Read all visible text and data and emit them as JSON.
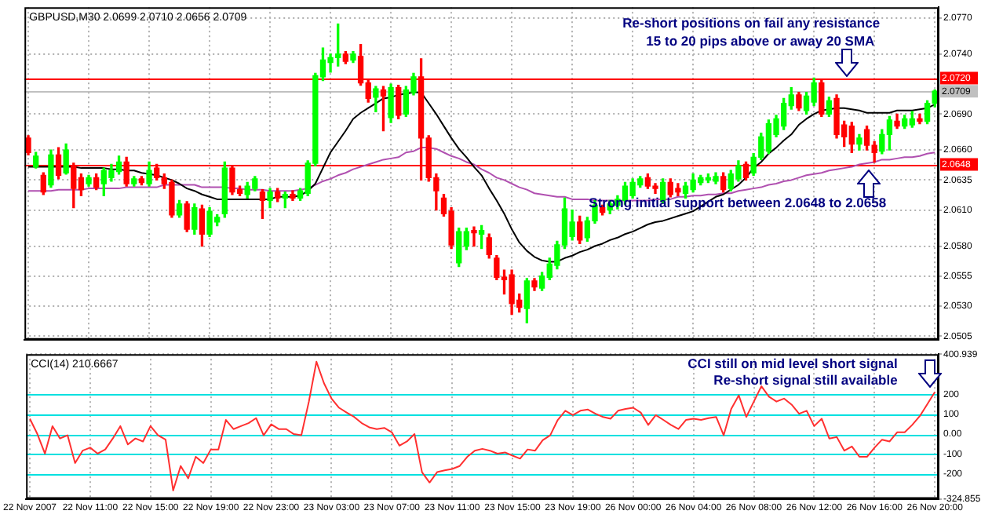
{
  "chart_data": [
    {
      "type": "candlestick",
      "title": "GBPUSD,M30 2.0699 2.0710 2.0656 2.0709",
      "categories": [
        null,
        null,
        null,
        null,
        null,
        null,
        null,
        null,
        null,
        null,
        null,
        null,
        null,
        null,
        null,
        null,
        null,
        null,
        null,
        null,
        null,
        null,
        null,
        null,
        null,
        null,
        null,
        null,
        null,
        null,
        null,
        null,
        null,
        null,
        null,
        null,
        null,
        null,
        null,
        null,
        null,
        null,
        null,
        null,
        null,
        null,
        null,
        null,
        null,
        null,
        null,
        null,
        null,
        null,
        null,
        null,
        null,
        null,
        null,
        null,
        null,
        null,
        null,
        null,
        null,
        null,
        null,
        null,
        null,
        null,
        null,
        null,
        null,
        null,
        null,
        null,
        null,
        null,
        null,
        null,
        null,
        null,
        null,
        null,
        null,
        null,
        null,
        null,
        null,
        null,
        null,
        null,
        null,
        null,
        null,
        null,
        null,
        null,
        null,
        null,
        null,
        null,
        null,
        null,
        null,
        null,
        null,
        null,
        null,
        null,
        null,
        null,
        null,
        null,
        null,
        null,
        null,
        null,
        null,
        null,
        null
      ],
      "ohlc": [
        [
          2.067,
          2.0672,
          2.0656,
          2.0658
        ],
        [
          2.0646,
          2.0658,
          2.0645,
          2.0655
        ],
        [
          2.0639,
          2.0641,
          2.0623,
          2.0625
        ],
        [
          2.0631,
          2.066,
          2.0629,
          2.0656
        ],
        [
          2.0656,
          2.0662,
          2.0636,
          2.0639
        ],
        [
          2.0641,
          2.0665,
          2.064,
          2.066
        ],
        [
          2.0647,
          2.0649,
          2.0612,
          2.0628
        ],
        [
          2.0637,
          2.064,
          2.0622,
          2.0627
        ],
        [
          2.0632,
          2.0639,
          2.063,
          2.0637
        ],
        [
          2.0637,
          2.064,
          2.0627,
          2.0629
        ],
        [
          2.0632,
          2.0645,
          2.0622,
          2.0643
        ],
        [
          2.0637,
          2.0648,
          2.0634,
          2.0643
        ],
        [
          2.0642,
          2.0655,
          2.064,
          2.065
        ],
        [
          2.065,
          2.0654,
          2.063,
          2.0632
        ],
        [
          2.0632,
          2.0638,
          2.063,
          2.0636
        ],
        [
          2.0636,
          2.0638,
          2.0631,
          2.0633
        ],
        [
          2.0632,
          2.065,
          2.063,
          2.0643
        ],
        [
          2.0645,
          2.0648,
          2.0635,
          2.0637
        ],
        [
          2.0637,
          2.064,
          2.0628,
          2.0632
        ],
        [
          2.0633,
          2.0635,
          2.0604,
          2.0606
        ],
        [
          2.0606,
          2.0618,
          2.0604,
          2.0615
        ],
        [
          2.0615,
          2.0617,
          2.0592,
          2.0594
        ],
        [
          2.0594,
          2.0615,
          2.059,
          2.0612
        ],
        [
          2.0611,
          2.0614,
          2.058,
          2.059
        ],
        [
          2.059,
          2.0612,
          2.0588,
          2.0609
        ],
        [
          2.06,
          2.0606,
          2.0597,
          2.0604
        ],
        [
          2.0607,
          2.065,
          2.0604,
          2.0645
        ],
        [
          2.0645,
          2.0647,
          2.0623,
          2.0625
        ],
        [
          2.0627,
          2.063,
          2.0622,
          2.0624
        ],
        [
          2.0623,
          2.0633,
          2.062,
          2.063
        ],
        [
          2.0628,
          2.0638,
          2.0626,
          2.0636
        ],
        [
          2.0625,
          2.0627,
          2.0603,
          2.0618
        ],
        [
          2.0618,
          2.0628,
          2.0612,
          2.0625
        ],
        [
          2.0625,
          2.0628,
          2.0617,
          2.062
        ],
        [
          2.062,
          2.0625,
          2.0612,
          2.0623
        ],
        [
          2.0623,
          2.0626,
          2.0618,
          2.062
        ],
        [
          2.062,
          2.0628,
          2.0618,
          2.0626
        ],
        [
          2.0624,
          2.0651,
          2.0622,
          2.0649
        ],
        [
          2.0649,
          2.0724,
          2.0647,
          2.0722
        ],
        [
          2.0721,
          2.0745,
          2.0718,
          2.0735
        ],
        [
          2.0733,
          2.074,
          2.0725,
          2.0737
        ],
        [
          2.0737,
          2.0765,
          2.073,
          2.074
        ],
        [
          2.074,
          2.0742,
          2.0732,
          2.0734
        ],
        [
          2.0735,
          2.0742,
          2.0733,
          2.074
        ],
        [
          2.0738,
          2.0748,
          2.0714,
          2.0716
        ],
        [
          2.0716,
          2.0718,
          2.07,
          2.0703
        ],
        [
          2.0704,
          2.0713,
          2.0692,
          2.0711
        ],
        [
          2.071,
          2.0713,
          2.0676,
          2.0705
        ],
        [
          2.0687,
          2.0715,
          2.0683,
          2.0712
        ],
        [
          2.0712,
          2.0714,
          2.0686,
          2.0689
        ],
        [
          2.069,
          2.0713,
          2.0688,
          2.071
        ],
        [
          2.0708,
          2.0724,
          2.0706,
          2.0721
        ],
        [
          2.0721,
          2.0736,
          2.0635,
          2.067
        ],
        [
          2.067,
          2.0672,
          2.0634,
          2.0637
        ],
        [
          2.0637,
          2.064,
          2.061,
          2.0626
        ],
        [
          2.062,
          2.0623,
          2.0605,
          2.0607
        ],
        [
          2.0609,
          2.0612,
          2.0578,
          2.0581
        ],
        [
          2.0566,
          2.0595,
          2.0563,
          2.0592
        ],
        [
          2.058,
          2.0595,
          2.0577,
          2.0592
        ],
        [
          2.0593,
          2.0596,
          2.058,
          2.0591
        ],
        [
          2.059,
          2.0597,
          2.0578,
          2.0593
        ],
        [
          2.0587,
          2.059,
          2.057,
          2.0573
        ],
        [
          2.057,
          2.0572,
          2.0552,
          2.0554
        ],
        [
          2.0554,
          2.056,
          2.054,
          2.0552
        ],
        [
          2.0556,
          2.056,
          2.0523,
          2.0532
        ],
        [
          2.0535,
          2.054,
          2.0525,
          2.0529
        ],
        [
          2.0528,
          2.0553,
          2.0516,
          2.0551
        ],
        [
          2.0551,
          2.0553,
          2.0543,
          2.0546
        ],
        [
          2.0545,
          2.0558,
          2.0543,
          2.0555
        ],
        [
          2.0554,
          2.057,
          2.0552,
          2.0565
        ],
        [
          2.0564,
          2.0584,
          2.0561,
          2.0581
        ],
        [
          2.0581,
          2.062,
          2.0578,
          2.0611
        ],
        [
          2.0588,
          2.061,
          2.0585,
          2.06
        ],
        [
          2.06,
          2.0605,
          2.0582,
          2.0585
        ],
        [
          2.0587,
          2.0604,
          2.0584,
          2.0601
        ],
        [
          2.0601,
          2.0618,
          2.0599,
          2.0614
        ],
        [
          2.0612,
          2.0614,
          2.0606,
          2.0608
        ],
        [
          2.061,
          2.0618,
          2.0607,
          2.0615
        ],
        [
          2.0614,
          2.0622,
          2.0611,
          2.0619
        ],
        [
          2.0618,
          2.0633,
          2.0615,
          2.063
        ],
        [
          2.0622,
          2.0636,
          2.062,
          2.0633
        ],
        [
          2.0631,
          2.0638,
          2.0629,
          2.0636
        ],
        [
          2.0637,
          2.064,
          2.0628,
          2.063
        ],
        [
          2.063,
          2.0632,
          2.0624,
          2.0628
        ],
        [
          2.0618,
          2.0636,
          2.0616,
          2.0633
        ],
        [
          2.0633,
          2.0636,
          2.0621,
          2.0623
        ],
        [
          2.0628,
          2.0632,
          2.0622,
          2.0625
        ],
        [
          2.0624,
          2.0633,
          2.062,
          2.063
        ],
        [
          2.0627,
          2.064,
          2.0625,
          2.0635
        ],
        [
          2.0633,
          2.0639,
          2.0631,
          2.0637
        ],
        [
          2.0635,
          2.064,
          2.0633,
          2.0637
        ],
        [
          2.0634,
          2.0641,
          2.0632,
          2.0638
        ],
        [
          2.0638,
          2.0641,
          2.0625,
          2.0627
        ],
        [
          2.0628,
          2.0643,
          2.0626,
          2.064
        ],
        [
          2.0636,
          2.0651,
          2.0634,
          2.0647
        ],
        [
          2.0648,
          2.065,
          2.0635,
          2.0637
        ],
        [
          2.0641,
          2.0657,
          2.0639,
          2.0654
        ],
        [
          2.0654,
          2.0674,
          2.0652,
          2.0671
        ],
        [
          2.0659,
          2.0685,
          2.0657,
          2.0682
        ],
        [
          2.0673,
          2.0689,
          2.0671,
          2.0686
        ],
        [
          2.068,
          2.0703,
          2.0677,
          2.0699
        ],
        [
          2.0697,
          2.0712,
          2.0694,
          2.0706
        ],
        [
          2.0706,
          2.0708,
          2.0693,
          2.0695
        ],
        [
          2.0693,
          2.0708,
          2.069,
          2.0705
        ],
        [
          2.07,
          2.072,
          2.0697,
          2.0716
        ],
        [
          2.0716,
          2.0718,
          2.0688,
          2.069
        ],
        [
          2.069,
          2.0704,
          2.0688,
          2.0701
        ],
        [
          2.0703,
          2.0706,
          2.067,
          2.0673
        ],
        [
          2.0681,
          2.0684,
          2.0663,
          2.0671
        ],
        [
          2.068,
          2.0683,
          2.0658,
          2.0665
        ],
        [
          2.0665,
          2.0673,
          2.066,
          2.067
        ],
        [
          2.0677,
          2.068,
          2.066,
          2.0664
        ],
        [
          2.0664,
          2.0667,
          2.065,
          2.0658
        ],
        [
          2.0659,
          2.0677,
          2.0657,
          2.0673
        ],
        [
          2.0673,
          2.0688,
          2.066,
          2.0685
        ],
        [
          2.0684,
          2.069,
          2.0678,
          2.068
        ],
        [
          2.068,
          2.0689,
          2.0678,
          2.0686
        ],
        [
          2.0681,
          2.0692,
          2.0679,
          2.0686
        ],
        [
          2.0686,
          2.069,
          2.0682,
          2.0684
        ],
        [
          2.0684,
          2.0701,
          2.0682,
          2.0699
        ],
        [
          2.0699,
          2.071,
          2.0696,
          2.0709
        ]
      ],
      "colors": [
        "#ff0000",
        "#00ff00",
        "#ff0000",
        "#00ff00",
        "#ff0000",
        "#00ff00",
        "#ff0000",
        "#ff0000",
        "#00ff00",
        "#ff0000",
        "#00ff00",
        "#00ff00",
        "#00ff00",
        "#ff0000",
        "#00ff00",
        "#ff0000",
        "#00ff00",
        "#ff0000",
        "#ff0000",
        "#ff0000",
        "#00ff00",
        "#ff0000",
        "#00ff00",
        "#ff0000",
        "#00ff00",
        "#00ff00",
        "#00ff00",
        "#ff0000",
        "#ff0000",
        "#00ff00",
        "#00ff00",
        "#ff0000",
        "#00ff00",
        "#ff0000",
        "#00ff00",
        "#ff0000",
        "#00ff00",
        "#00ff00",
        "#00ff00",
        "#00ff00",
        "#00ff00",
        "#00ff00",
        "#ff0000",
        "#00ff00",
        "#ff0000",
        "#ff0000",
        "#00ff00",
        "#ff0000",
        "#00ff00",
        "#ff0000",
        "#00ff00",
        "#00ff00",
        "#ff0000",
        "#ff0000",
        "#ff0000",
        "#ff0000",
        "#ff0000",
        "#00ff00",
        "#00ff00",
        "#ff0000",
        "#00ff00",
        "#ff0000",
        "#ff0000",
        "#ff0000",
        "#ff0000",
        "#ff0000",
        "#00ff00",
        "#ff0000",
        "#00ff00",
        "#00ff00",
        "#00ff00",
        "#00ff00",
        "#00ff00",
        "#ff0000",
        "#00ff00",
        "#00ff00",
        "#ff0000",
        "#00ff00",
        "#00ff00",
        "#00ff00",
        "#00ff00",
        "#00ff00",
        "#ff0000",
        "#ff0000",
        "#00ff00",
        "#ff0000",
        "#ff0000",
        "#00ff00",
        "#00ff00",
        "#00ff00",
        "#00ff00",
        "#00ff00",
        "#ff0000",
        "#00ff00",
        "#00ff00",
        "#ff0000",
        "#00ff00",
        "#00ff00",
        "#00ff00",
        "#00ff00",
        "#00ff00",
        "#00ff00",
        "#ff0000",
        "#00ff00",
        "#00ff00",
        "#ff0000",
        "#00ff00",
        "#ff0000",
        "#ff0000",
        "#ff0000",
        "#00ff00",
        "#ff0000",
        "#ff0000",
        "#00ff00",
        "#00ff00",
        "#ff0000",
        "#00ff00",
        "#00ff00",
        "#ff0000",
        "#00ff00",
        "#00ff00"
      ],
      "series": [
        {
          "type": "line",
          "color": "#000000",
          "values": [
            2.0646,
            2.0646,
            2.0646,
            2.0646,
            2.0646,
            2.0646,
            2.0646,
            2.0645,
            2.0645,
            2.0645,
            2.0645,
            2.0644,
            2.0644,
            2.0643,
            2.0643,
            2.0641,
            2.064,
            2.0639,
            2.0637,
            2.0635,
            2.0632,
            2.0628,
            2.0626,
            2.0623,
            2.0621,
            2.0619,
            2.0619,
            2.0619,
            2.0619,
            2.0619,
            2.0619,
            2.0619,
            2.0619,
            2.0621,
            2.0621,
            2.0621,
            2.0622,
            2.0626,
            2.0632,
            2.0645,
            2.0658,
            2.0667,
            2.0676,
            2.0686,
            2.0691,
            2.0695,
            2.0699,
            2.0703,
            2.0704,
            2.0706,
            2.0707,
            2.0708,
            2.0708,
            2.0699,
            2.069,
            2.068,
            2.067,
            2.0661,
            2.0654,
            2.0646,
            2.0639,
            2.0628,
            2.0618,
            2.0607,
            2.0594,
            2.0583,
            2.0576,
            2.0571,
            2.0568,
            2.0567,
            2.0567,
            2.057,
            2.0572,
            2.0575,
            2.0577,
            2.058,
            2.0582,
            2.0585,
            2.0587,
            2.059,
            2.0592,
            2.0595,
            2.0598,
            2.06,
            2.0601,
            2.0603,
            2.0605,
            2.0607,
            2.0609,
            2.0613,
            2.0617,
            2.0621,
            2.0623,
            2.0627,
            2.0631,
            2.0637,
            2.0645,
            2.065,
            2.0657,
            2.0662,
            2.0668,
            2.0673,
            2.0681,
            2.0686,
            2.069,
            2.0693,
            2.0694,
            2.0695,
            2.0695,
            2.0694,
            2.0693,
            2.0691,
            2.0691,
            2.0691,
            2.0691,
            2.0693,
            2.0693,
            2.0693,
            2.0694,
            2.0695,
            2.0698
          ]
        },
        {
          "type": "line",
          "color": "#b050b0",
          "values": [
            2.0626,
            2.0626,
            2.0626,
            2.0626,
            2.0627,
            2.0627,
            2.0627,
            2.0627,
            2.0628,
            2.0628,
            2.0628,
            2.0628,
            2.0628,
            2.0629,
            2.0629,
            2.0629,
            2.0629,
            2.0629,
            2.0631,
            2.0631,
            2.0631,
            2.0631,
            2.0631,
            2.0629,
            2.0629,
            2.0629,
            2.0629,
            2.0628,
            2.0628,
            2.0627,
            2.0627,
            2.0627,
            2.0626,
            2.0626,
            2.0626,
            2.0626,
            2.0627,
            2.0628,
            2.0631,
            2.0634,
            2.0636,
            2.0639,
            2.0641,
            2.0644,
            2.0646,
            2.0648,
            2.065,
            2.0652,
            2.0653,
            2.0654,
            2.0658,
            2.0659,
            2.0662,
            2.0662,
            2.0661,
            2.0658,
            2.0655,
            2.0653,
            2.065,
            2.0648,
            2.0644,
            2.0641,
            2.0637,
            2.0635,
            2.0632,
            2.0629,
            2.0627,
            2.0624,
            2.0623,
            2.0622,
            2.0621,
            2.0621,
            2.0619,
            2.0619,
            2.0619,
            2.0618,
            2.0618,
            2.0618,
            2.0618,
            2.0618,
            2.0618,
            2.0618,
            2.0618,
            2.0619,
            2.0619,
            2.0619,
            2.0621,
            2.0621,
            2.0622,
            2.0622,
            2.0623,
            2.0623,
            2.0624,
            2.0624,
            2.0626,
            2.0627,
            2.0628,
            2.0629,
            2.0631,
            2.0632,
            2.0634,
            2.0635,
            2.0637,
            2.0639,
            2.064,
            2.0641,
            2.0643,
            2.0644,
            2.0645,
            2.0646,
            2.0648,
            2.0649,
            2.065,
            2.0652,
            2.0652,
            2.0653,
            2.0654,
            2.0654,
            2.0655,
            2.0657,
            2.0658
          ]
        }
      ],
      "ylim": [
        2.0502,
        2.0779
      ],
      "yticks": [
        {
          "value": 2.077,
          "label": "2.0770"
        },
        {
          "value": 2.074,
          "label": "2.0740"
        },
        {
          "value": 2.069,
          "label": "2.0690"
        },
        {
          "value": 2.066,
          "label": "2.0660"
        },
        2.0635,
        {
          "value": 2.061,
          "label": "2.0610"
        },
        {
          "value": 2.058,
          "label": "2.0580"
        },
        2.0555,
        {
          "value": 2.053,
          "label": "2.0530"
        },
        2.0505
      ],
      "ref_lines": [
        {
          "axis": "y",
          "value": 2.072,
          "label": "2.0720",
          "color": "#ff0000"
        },
        {
          "axis": "y",
          "value": 2.0709,
          "label": "2.0709",
          "color": "#c0c0c0"
        },
        {
          "axis": "y",
          "value": 2.0648,
          "label": "2.0648",
          "color": "#ff0000"
        }
      ],
      "annotations": [
        "Re-short positions on fail any resistance",
        "15 to 20 pips above or away 20 SMA",
        "Strong initial support between 2.0648 to 2.0658"
      ],
      "grid": true,
      "legend": false,
      "tick_labels": "y",
      "marker": "none"
    },
    {
      "type": "line",
      "title": "CCI(14) 210.6667",
      "categories": [
        "22 Nov 2007",
        null,
        null,
        null,
        null,
        null,
        null,
        null,
        "22 Nov 11:00",
        null,
        null,
        null,
        null,
        null,
        null,
        null,
        "22 Nov 15:00",
        null,
        null,
        null,
        null,
        null,
        null,
        null,
        "22 Nov 19:00",
        null,
        null,
        null,
        null,
        null,
        null,
        null,
        "22 Nov 23:00",
        null,
        null,
        null,
        null,
        null,
        null,
        null,
        "23 Nov 03:00",
        null,
        null,
        null,
        null,
        null,
        null,
        null,
        "23 Nov 07:00",
        null,
        null,
        null,
        null,
        null,
        null,
        null,
        "23 Nov 11:00",
        null,
        null,
        null,
        null,
        null,
        null,
        null,
        "23 Nov 15:00",
        null,
        null,
        null,
        null,
        null,
        null,
        null,
        "23 Nov 19:00",
        null,
        null,
        null,
        null,
        null,
        null,
        null,
        "26 Nov 00:00",
        null,
        null,
        null,
        null,
        null,
        null,
        null,
        "26 Nov 04:00",
        null,
        null,
        null,
        null,
        null,
        null,
        null,
        "26 Nov 08:00",
        null,
        null,
        null,
        null,
        null,
        null,
        null,
        "26 Nov 12:00",
        null,
        null,
        null,
        null,
        null,
        null,
        null,
        "26 Nov 16:00",
        null,
        null,
        null,
        null,
        null,
        null,
        null,
        "26 Nov 20:00"
      ],
      "series": [
        {
          "color": "#ff3030",
          "values": [
            77,
            0,
            -98,
            40,
            -22,
            -6,
            -145,
            -83,
            -68,
            -98,
            -77,
            -22,
            40,
            -52,
            -22,
            -37,
            40,
            -6,
            -28,
            -283,
            -160,
            -222,
            -114,
            -145,
            -77,
            -77,
            71,
            25,
            40,
            55,
            80,
            -6,
            49,
            25,
            25,
            0,
            -6,
            163,
            363,
            255,
            178,
            132,
            108,
            86,
            55,
            34,
            25,
            31,
            9,
            -58,
            -37,
            0,
            -191,
            -243,
            -191,
            -182,
            -175,
            -160,
            -114,
            -83,
            -74,
            -83,
            -98,
            -92,
            -108,
            -123,
            -77,
            -83,
            -31,
            -6,
            71,
            117,
            95,
            117,
            123,
            102,
            86,
            77,
            117,
            126,
            132,
            108,
            46,
            95,
            71,
            46,
            25,
            71,
            77,
            71,
            80,
            86,
            -6,
            126,
            194,
            86,
            163,
            240,
            188,
            163,
            178,
            148,
            102,
            117,
            40,
            77,
            -22,
            -15,
            -83,
            -62,
            -114,
            -114,
            -68,
            -28,
            -37,
            9,
            9,
            46,
            90,
            150,
            211
          ]
        }
      ],
      "ylim": [
        -324.855,
        400.939
      ],
      "yticks": [
        400.939,
        200,
        100,
        {
          "value": 0,
          "label": "0.00"
        },
        -100,
        -200,
        -324.855
      ],
      "ref_lines": [
        {
          "axis": "y",
          "value": 200,
          "color": "#00e0e0"
        },
        {
          "axis": "y",
          "value": 100,
          "color": "#00e0e0"
        },
        {
          "axis": "y",
          "value": 0,
          "color": "#00e0e0"
        },
        {
          "axis": "y",
          "value": -100,
          "color": "#00e0e0"
        },
        {
          "axis": "y",
          "value": -200,
          "color": "#00e0e0"
        }
      ],
      "annotations": [
        "CCI still on mid level short signal",
        "Re-short signal still available"
      ],
      "grid": true,
      "legend": false,
      "marker": "none"
    }
  ]
}
